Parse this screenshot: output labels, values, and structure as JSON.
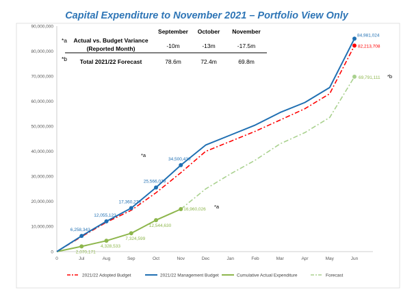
{
  "chart_data": {
    "type": "line",
    "title": "Capital Expenditure to November 2021 – Portfolio View Only",
    "categories": [
      "0",
      "Jul",
      "Aug",
      "Sep",
      "Oct",
      "Nov",
      "Dec",
      "Jan",
      "Feb",
      "Mar",
      "Apr",
      "May",
      "Jun"
    ],
    "ylim": [
      0,
      90000000
    ],
    "yticks": [
      "0",
      "10,000,000",
      "20,000,000",
      "30,000,000",
      "40,000,000",
      "50,000,000",
      "60,000,000",
      "70,000,000",
      "80,000,000",
      "90,000,000"
    ],
    "ytick_values": [
      0,
      10000000,
      20000000,
      30000000,
      40000000,
      50000000,
      60000000,
      70000000,
      80000000,
      90000000
    ],
    "grid": false,
    "legend_position": "bottom",
    "series": [
      {
        "name": "2021/22 Adopted Budget",
        "color": "#ff0000",
        "style": "dashdot",
        "values": [
          0,
          6000000,
          11700000,
          16500000,
          23500000,
          31500000,
          40000000,
          44000000,
          48000000,
          52500000,
          57000000,
          63000000,
          82213708
        ],
        "labels": [
          {
            "i": 12,
            "text": "82,213,708",
            "color": "#ff0000"
          }
        ]
      },
      {
        "name": "2021/22 Management Budget",
        "color": "#1f6fb2",
        "style": "solid",
        "values": [
          0,
          6258343,
          12055123,
          17360279,
          25566079,
          34500430,
          42500000,
          46500000,
          50500000,
          55500000,
          59500000,
          65500000,
          84981024
        ],
        "labels": [
          {
            "i": 1,
            "text": "6,258,343",
            "color": "#1f6fb2"
          },
          {
            "i": 2,
            "text": "12,055,123",
            "color": "#1f6fb2"
          },
          {
            "i": 3,
            "text": "17,360,279",
            "color": "#1f6fb2"
          },
          {
            "i": 4,
            "text": "25,566,079",
            "color": "#1f6fb2"
          },
          {
            "i": 5,
            "text": "34,500,430",
            "color": "#1f6fb2"
          },
          {
            "i": 12,
            "text": "84,981,024",
            "color": "#1f6fb2"
          }
        ]
      },
      {
        "name": "Cumulative Actual Expenditure",
        "color": "#8db64c",
        "style": "solid",
        "values": [
          0,
          2070171,
          4328533,
          7324599,
          12544630,
          16960026,
          null,
          null,
          null,
          null,
          null,
          null,
          null
        ],
        "labels": [
          {
            "i": 1,
            "text": "2,070,171",
            "color": "#8db64c"
          },
          {
            "i": 2,
            "text": "4,328,533",
            "color": "#8db64c"
          },
          {
            "i": 3,
            "text": "7,324,599",
            "color": "#8db64c"
          },
          {
            "i": 4,
            "text": "12,544,630",
            "color": "#8db64c"
          },
          {
            "i": 5,
            "text": "16,960,026",
            "color": "#8db64c"
          }
        ]
      },
      {
        "name": "Forecast",
        "color": "#a9d18e",
        "style": "dashdot",
        "values": [
          null,
          null,
          null,
          null,
          null,
          16960026,
          25000000,
          31000000,
          36500000,
          43000000,
          47500000,
          53500000,
          69791111
        ],
        "labels": [
          {
            "i": 12,
            "text": "69,791,111",
            "color": "#8db64c"
          }
        ]
      }
    ],
    "annotations": [
      {
        "text": "*a",
        "near": "Nov management budget point"
      },
      {
        "text": "*a",
        "near": "Nov cumulative actual point"
      },
      {
        "text": "*b",
        "near": "Jun forecast point"
      }
    ]
  },
  "table": {
    "months": [
      "September",
      "October",
      "November"
    ],
    "rows": [
      {
        "marker": "*a",
        "label_line1": "Actual vs. Budget Variance",
        "label_line2": "(Reported Month)",
        "values": [
          "-10m",
          "-13m",
          "-17.5m"
        ]
      },
      {
        "marker": "*b",
        "label_line1": "Total 2021/22 Forecast",
        "label_line2": "",
        "values": [
          "78.6m",
          "72.4m",
          "69.8m"
        ]
      }
    ]
  },
  "notes": {
    "a1": "*a",
    "a2": "*a",
    "b": "*b"
  }
}
